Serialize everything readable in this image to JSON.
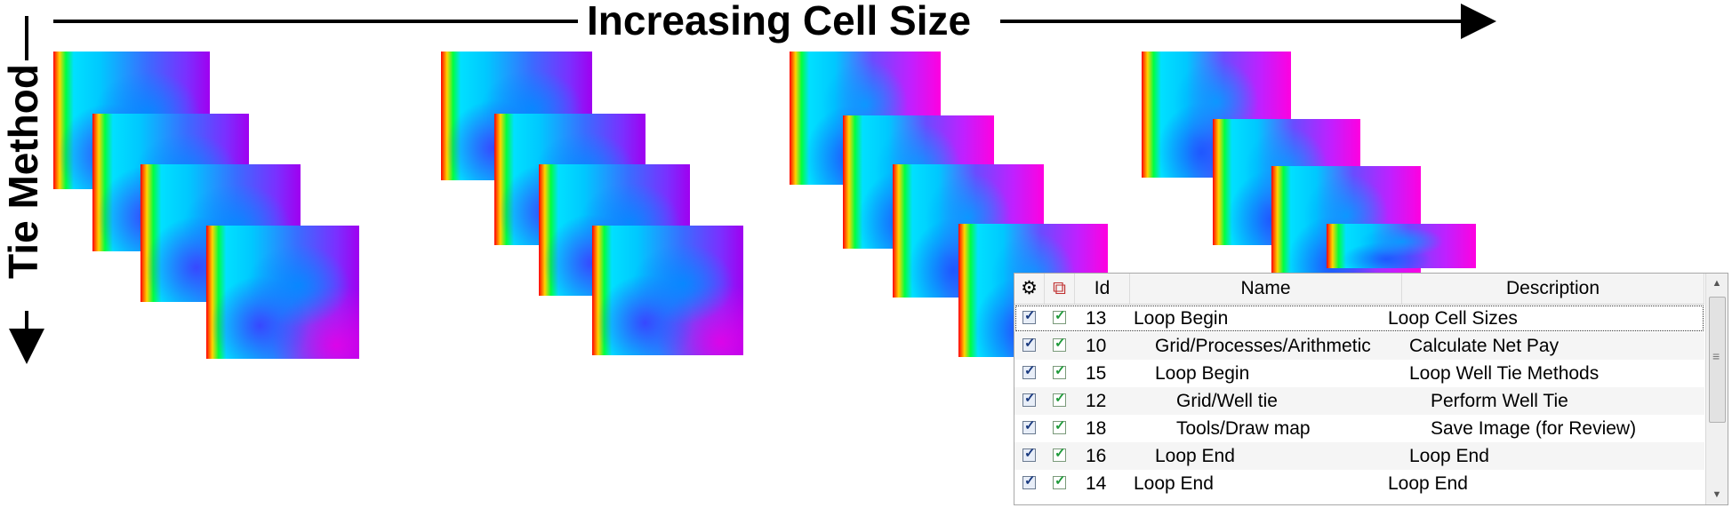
{
  "heading_horizontal": "Increasing Cell Size",
  "heading_vertical": "Tie Method",
  "colors": {
    "arrow": "#000000",
    "colormap": [
      "#ff0000",
      "#ffd400",
      "#00ff40",
      "#00e0ff",
      "#3a6cff",
      "#a000f0",
      "#ff00e0"
    ]
  },
  "table": {
    "columns": {
      "active_icon": "gear-icon",
      "status_icon": "status-icon",
      "id": "Id",
      "name": "Name",
      "description": "Description"
    },
    "rows": [
      {
        "checked": true,
        "status": true,
        "id": "13",
        "name": "Loop Begin",
        "description": "Loop Cell Sizes"
      },
      {
        "checked": true,
        "status": true,
        "id": "10",
        "name": "Grid/Processes/Arithmetic",
        "description": "Calculate Net Pay"
      },
      {
        "checked": true,
        "status": true,
        "id": "15",
        "name": "Loop Begin",
        "description": "Loop Well Tie Methods"
      },
      {
        "checked": true,
        "status": true,
        "id": "12",
        "name": "Grid/Well tie",
        "description": "Perform Well Tie"
      },
      {
        "checked": true,
        "status": true,
        "id": "18",
        "name": "Tools/Draw map",
        "description": "Save Image (for Review)"
      },
      {
        "checked": true,
        "status": true,
        "id": "16",
        "name": "Loop End",
        "description": "Loop End"
      },
      {
        "checked": true,
        "status": true,
        "id": "14",
        "name": "Loop End",
        "description": "Loop End"
      }
    ]
  }
}
